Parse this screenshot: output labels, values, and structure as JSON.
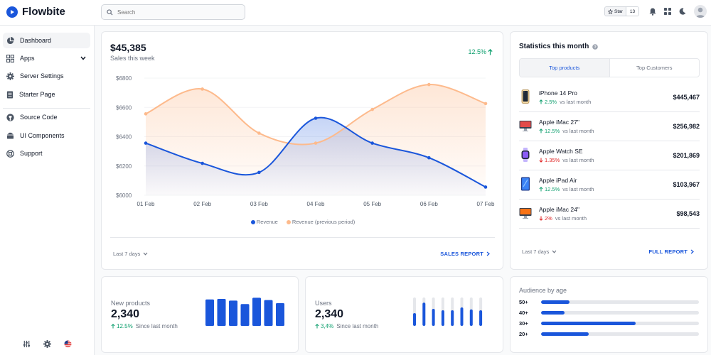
{
  "brand": {
    "name": "Flowbite"
  },
  "search": {
    "placeholder": "Search"
  },
  "github": {
    "star_label": "Star",
    "star_count": "13"
  },
  "sidebar": {
    "items": [
      {
        "label": "Dashboard",
        "icon": "pie-chart-icon"
      },
      {
        "label": "Apps",
        "icon": "grid-icon"
      },
      {
        "label": "Server Settings",
        "icon": "gear-icon"
      },
      {
        "label": "Starter Page",
        "icon": "document-icon"
      },
      {
        "label": "Source Code",
        "icon": "github-icon"
      },
      {
        "label": "UI Components",
        "icon": "layers-icon"
      },
      {
        "label": "Support",
        "icon": "lifebuoy-icon"
      }
    ]
  },
  "sales": {
    "value": "$45,385",
    "subtitle": "Sales this week",
    "growth": "12.5%",
    "footer_period": "Last 7 days",
    "footer_link": "SALES REPORT",
    "legend": [
      "Revenue",
      "Revenue (previous period)"
    ]
  },
  "chart_data": {
    "type": "area",
    "categories": [
      "01 Feb",
      "02 Feb",
      "03 Feb",
      "04 Feb",
      "05 Feb",
      "06 Feb",
      "07 Feb"
    ],
    "yticks": [
      "$6800",
      "$6600",
      "$6400",
      "$6200",
      "$6000"
    ],
    "ylim": [
      6000,
      6800
    ],
    "series": [
      {
        "name": "Revenue",
        "color": "#1a56db",
        "values": [
          6356,
          6218,
          6156,
          6526,
          6356,
          6256,
          6056
        ]
      },
      {
        "name": "Revenue (previous period)",
        "color": "#fdba8c",
        "values": [
          6556,
          6725,
          6424,
          6356,
          6586,
          6756,
          6626
        ]
      }
    ],
    "grid": true,
    "legend_position": "bottom"
  },
  "stats": {
    "title": "Statistics this month",
    "tabs": [
      "Top products",
      "Top Customers"
    ],
    "products": [
      {
        "name": "iPhone 14 Pro",
        "change": "2.5%",
        "direction": "up",
        "vs": "vs last month",
        "value": "$445,467"
      },
      {
        "name": "Apple iMac 27\"",
        "change": "12.5%",
        "direction": "up",
        "vs": "vs last month",
        "value": "$256,982"
      },
      {
        "name": "Apple Watch SE",
        "change": "1.35%",
        "direction": "down",
        "vs": "vs last month",
        "value": "$201,869"
      },
      {
        "name": "Apple iPad Air",
        "change": "12.5%",
        "direction": "up",
        "vs": "vs last month",
        "value": "$103,967"
      },
      {
        "name": "Apple iMac 24\"",
        "change": "2%",
        "direction": "down",
        "vs": "vs last month",
        "value": "$98,543"
      }
    ],
    "footer_period": "Last 7 days",
    "footer_link": "FULL REPORT"
  },
  "new_products": {
    "title": "New products",
    "value": "2,340",
    "change": "12.5%",
    "since": "Since last month",
    "bars": [
      0.93,
      0.95,
      0.89,
      0.77,
      0.99,
      0.91,
      0.8
    ]
  },
  "users": {
    "title": "Users",
    "value": "2,340",
    "change": "3,4%",
    "since": "Since last month",
    "bars": [
      0.45,
      0.82,
      0.6,
      0.55,
      0.55,
      0.65,
      0.58,
      0.55
    ]
  },
  "audience": {
    "title": "Audience by age",
    "rows": [
      {
        "label": "50+",
        "value": 0.18
      },
      {
        "label": "40+",
        "value": 0.15
      },
      {
        "label": "30+",
        "value": 0.6
      },
      {
        "label": "20+",
        "value": 0.3
      }
    ]
  },
  "colors": {
    "accent": "#1a56db",
    "positive": "#0e9f6e",
    "negative": "#e02424",
    "previous": "#fdba8c"
  }
}
